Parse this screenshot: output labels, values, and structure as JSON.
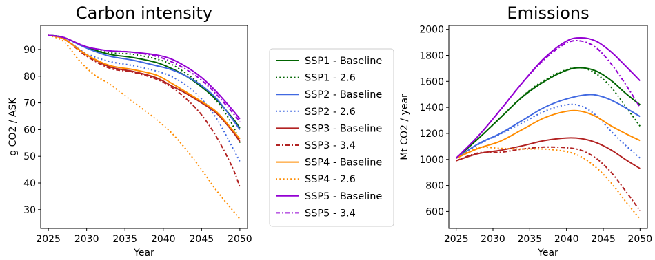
{
  "chart_data": [
    {
      "type": "line",
      "title": "Carbon intensity",
      "xlabel": "Year",
      "ylabel": "g CO2 / ASK",
      "xlim": [
        2024,
        2051
      ],
      "ylim": [
        23,
        99
      ],
      "xticks": [
        2025,
        2030,
        2035,
        2040,
        2045,
        2050
      ],
      "yticks": [
        30,
        40,
        50,
        60,
        70,
        80,
        90
      ],
      "grid": false,
      "series": [
        {
          "name": "SSP1 - Baseline",
          "color": "#006400",
          "dash": "solid",
          "x": [
            2025,
            2027,
            2030,
            2033,
            2036,
            2039,
            2041,
            2043,
            2045,
            2047,
            2049,
            2050
          ],
          "y": [
            95.3,
            94.5,
            90.8,
            88.2,
            87.0,
            85.2,
            83.0,
            80.0,
            76.0,
            71.0,
            64.5,
            60.5
          ]
        },
        {
          "name": "SSP1 - 2.6",
          "color": "#006400",
          "dash": "dotted",
          "x": [
            2025,
            2027,
            2030,
            2033,
            2036,
            2039,
            2041,
            2043,
            2045,
            2047,
            2049,
            2050
          ],
          "y": [
            95.3,
            94.5,
            90.7,
            88.8,
            88.2,
            86.5,
            84.5,
            81.0,
            76.5,
            70.5,
            62.0,
            55.0
          ]
        },
        {
          "name": "SSP2 - Baseline",
          "color": "#4169E1",
          "dash": "solid",
          "x": [
            2025,
            2027,
            2030,
            2033,
            2036,
            2039,
            2041,
            2043,
            2045,
            2047,
            2049,
            2050
          ],
          "y": [
            95.3,
            94.5,
            90.5,
            87.5,
            86.0,
            84.0,
            82.5,
            80.0,
            76.5,
            71.5,
            64.0,
            60.0
          ]
        },
        {
          "name": "SSP2 - 2.6",
          "color": "#4169E1",
          "dash": "dotted",
          "x": [
            2025,
            2027,
            2030,
            2033,
            2036,
            2039,
            2041,
            2043,
            2045,
            2047,
            2049,
            2050
          ],
          "y": [
            95.3,
            94.0,
            88.5,
            85.5,
            84.0,
            82.0,
            80.0,
            76.5,
            71.5,
            64.0,
            53.5,
            48.0
          ]
        },
        {
          "name": "SSP3 - Baseline",
          "color": "#B22222",
          "dash": "solid",
          "x": [
            2025,
            2027,
            2030,
            2033,
            2036,
            2039,
            2041,
            2043,
            2045,
            2047,
            2049,
            2050
          ],
          "y": [
            95.3,
            94.0,
            88.0,
            83.5,
            81.8,
            79.5,
            76.5,
            73.5,
            70.0,
            66.0,
            59.5,
            55.5
          ]
        },
        {
          "name": "SSP3 - 3.4",
          "color": "#B22222",
          "dash": "dashdot",
          "x": [
            2025,
            2027,
            2030,
            2033,
            2036,
            2039,
            2041,
            2043,
            2045,
            2047,
            2049,
            2050
          ],
          "y": [
            95.3,
            94.0,
            87.5,
            83.0,
            81.5,
            79.0,
            76.0,
            71.5,
            65.5,
            57.0,
            46.0,
            38.5
          ]
        },
        {
          "name": "SSP4 - Baseline",
          "color": "#FF8C00",
          "dash": "solid",
          "x": [
            2025,
            2027,
            2030,
            2033,
            2036,
            2039,
            2041,
            2043,
            2045,
            2047,
            2049,
            2050
          ],
          "y": [
            95.3,
            94.0,
            88.0,
            84.0,
            82.5,
            80.5,
            77.5,
            74.0,
            70.5,
            66.5,
            60.0,
            56.5
          ]
        },
        {
          "name": "SSP4 - 2.6",
          "color": "#FF8C00",
          "dash": "dotted",
          "x": [
            2025,
            2027,
            2029,
            2031,
            2033,
            2036,
            2039,
            2041,
            2043,
            2045,
            2047,
            2049,
            2050
          ],
          "y": [
            95.3,
            93.0,
            86.0,
            80.5,
            77.0,
            70.5,
            64.0,
            59.0,
            52.5,
            45.0,
            37.0,
            30.0,
            26.5
          ]
        },
        {
          "name": "SSP5 - Baseline",
          "color": "#9400D3",
          "dash": "solid",
          "x": [
            2025,
            2027,
            2030,
            2033,
            2036,
            2039,
            2041,
            2043,
            2045,
            2047,
            2049,
            2050
          ],
          "y": [
            95.3,
            94.5,
            91.0,
            89.5,
            89.0,
            88.0,
            86.5,
            83.5,
            79.5,
            74.0,
            67.5,
            64.0
          ]
        },
        {
          "name": "SSP5 - 3.4",
          "color": "#9400D3",
          "dash": "dashdot",
          "x": [
            2025,
            2027,
            2030,
            2033,
            2036,
            2039,
            2041,
            2043,
            2045,
            2047,
            2049,
            2050
          ],
          "y": [
            95.3,
            94.5,
            91.0,
            89.5,
            89.0,
            87.5,
            85.5,
            82.5,
            78.5,
            73.0,
            66.5,
            63.0
          ]
        }
      ]
    },
    {
      "type": "line",
      "title": "Emissions",
      "xlabel": "Year",
      "ylabel": "Mt CO2 / year",
      "xlim": [
        2024,
        2051
      ],
      "ylim": [
        470,
        2030
      ],
      "xticks": [
        2025,
        2030,
        2035,
        2040,
        2045,
        2050
      ],
      "yticks": [
        600,
        800,
        1000,
        1200,
        1400,
        1600,
        1800,
        2000
      ],
      "grid": false,
      "series": [
        {
          "name": "SSP1 - Baseline",
          "color": "#006400",
          "dash": "solid",
          "x": [
            2025,
            2028,
            2031,
            2034,
            2037,
            2040,
            2042,
            2044,
            2046,
            2048,
            2050
          ],
          "y": [
            1010,
            1160,
            1320,
            1480,
            1600,
            1685,
            1705,
            1680,
            1610,
            1510,
            1420
          ]
        },
        {
          "name": "SSP1 - 2.6",
          "color": "#006400",
          "dash": "dotted",
          "x": [
            2025,
            2028,
            2031,
            2034,
            2037,
            2040,
            2042,
            2044,
            2046,
            2048,
            2050
          ],
          "y": [
            1010,
            1160,
            1320,
            1485,
            1610,
            1690,
            1705,
            1660,
            1560,
            1410,
            1255
          ]
        },
        {
          "name": "SSP2 - Baseline",
          "color": "#4169E1",
          "dash": "solid",
          "x": [
            2025,
            2028,
            2031,
            2034,
            2037,
            2040,
            2043,
            2045,
            2047,
            2050
          ],
          "y": [
            1010,
            1120,
            1200,
            1300,
            1400,
            1465,
            1498,
            1480,
            1430,
            1330
          ]
        },
        {
          "name": "SSP2 - 2.6",
          "color": "#4169E1",
          "dash": "dotted",
          "x": [
            2025,
            2028,
            2031,
            2034,
            2037,
            2040,
            2042,
            2044,
            2046,
            2048,
            2050
          ],
          "y": [
            1010,
            1115,
            1195,
            1280,
            1370,
            1420,
            1410,
            1340,
            1220,
            1110,
            1010
          ]
        },
        {
          "name": "SSP3 - Baseline",
          "color": "#B22222",
          "dash": "solid",
          "x": [
            2025,
            2028,
            2031,
            2034,
            2037,
            2040,
            2042,
            2044,
            2046,
            2048,
            2050
          ],
          "y": [
            990,
            1045,
            1070,
            1105,
            1145,
            1165,
            1160,
            1130,
            1075,
            1000,
            930
          ]
        },
        {
          "name": "SSP3 - 3.4",
          "color": "#B22222",
          "dash": "dashdot",
          "x": [
            2025,
            2028,
            2031,
            2034,
            2037,
            2040,
            2042,
            2044,
            2046,
            2048,
            2050
          ],
          "y": [
            990,
            1050,
            1055,
            1080,
            1095,
            1090,
            1070,
            1010,
            905,
            760,
            605
          ]
        },
        {
          "name": "SSP4 - Baseline",
          "color": "#FF8C00",
          "dash": "solid",
          "x": [
            2025,
            2028,
            2031,
            2034,
            2037,
            2040,
            2042,
            2044,
            2046,
            2048,
            2050
          ],
          "y": [
            1010,
            1085,
            1140,
            1230,
            1320,
            1370,
            1370,
            1330,
            1260,
            1200,
            1145
          ]
        },
        {
          "name": "SSP4 - 2.6",
          "color": "#FF8C00",
          "dash": "dotted",
          "x": [
            2025,
            2028,
            2031,
            2034,
            2037,
            2040,
            2042,
            2044,
            2046,
            2048,
            2050
          ],
          "y": [
            1010,
            1090,
            1085,
            1080,
            1080,
            1060,
            1020,
            940,
            825,
            680,
            540
          ]
        },
        {
          "name": "SSP5 - Baseline",
          "color": "#9400D3",
          "dash": "solid",
          "x": [
            2025,
            2028,
            2031,
            2034,
            2037,
            2040,
            2042,
            2044,
            2046,
            2048,
            2050
          ],
          "y": [
            1010,
            1180,
            1380,
            1590,
            1780,
            1910,
            1935,
            1910,
            1830,
            1720,
            1605
          ]
        },
        {
          "name": "SSP5 - 3.4",
          "color": "#9400D3",
          "dash": "dashdot",
          "x": [
            2025,
            2028,
            2031,
            2034,
            2037,
            2040,
            2042,
            2044,
            2046,
            2048,
            2050
          ],
          "y": [
            1010,
            1180,
            1380,
            1590,
            1770,
            1895,
            1910,
            1860,
            1740,
            1580,
            1400
          ]
        }
      ]
    }
  ],
  "legend": {
    "placement": "center",
    "entries": [
      {
        "label": "SSP1 - Baseline",
        "color": "#006400",
        "dash": "solid"
      },
      {
        "label": "SSP1 - 2.6",
        "color": "#006400",
        "dash": "dotted"
      },
      {
        "label": "SSP2 - Baseline",
        "color": "#4169E1",
        "dash": "solid"
      },
      {
        "label": "SSP2 - 2.6",
        "color": "#4169E1",
        "dash": "dotted"
      },
      {
        "label": "SSP3 - Baseline",
        "color": "#B22222",
        "dash": "solid"
      },
      {
        "label": "SSP3 - 3.4",
        "color": "#B22222",
        "dash": "dashdot"
      },
      {
        "label": "SSP4 - Baseline",
        "color": "#FF8C00",
        "dash": "solid"
      },
      {
        "label": "SSP4 - 2.6",
        "color": "#FF8C00",
        "dash": "dotted"
      },
      {
        "label": "SSP5 - Baseline",
        "color": "#9400D3",
        "dash": "solid"
      },
      {
        "label": "SSP5 - 3.4",
        "color": "#9400D3",
        "dash": "dashdot"
      }
    ]
  }
}
